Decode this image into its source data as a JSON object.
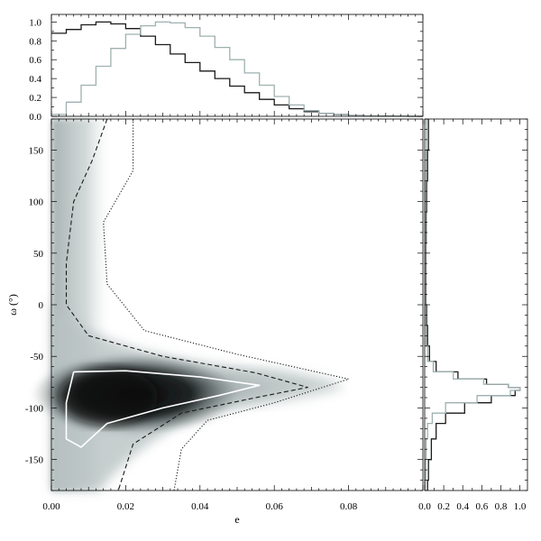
{
  "chart_data": [
    {
      "panel": "top",
      "type": "line",
      "xlabel": "",
      "ylabel": "",
      "xlim": [
        0,
        0.1
      ],
      "ylim": [
        0,
        1.08
      ],
      "y_ticks": [
        "0.0",
        "0.2",
        "0.4",
        "0.6",
        "0.8",
        "1.0"
      ],
      "series": [
        {
          "color": "#1a1a1a",
          "x": [
            0.0,
            0.004,
            0.008,
            0.012,
            0.016,
            0.02,
            0.024,
            0.028,
            0.032,
            0.036,
            0.04,
            0.044,
            0.048,
            0.052,
            0.056,
            0.06,
            0.064,
            0.068,
            0.072,
            0.076,
            0.08,
            0.084,
            0.088,
            0.092,
            0.096,
            0.1
          ],
          "y": [
            0.88,
            0.92,
            0.97,
            1.0,
            0.98,
            0.93,
            0.85,
            0.76,
            0.66,
            0.57,
            0.48,
            0.4,
            0.32,
            0.25,
            0.18,
            0.12,
            0.08,
            0.05,
            0.03,
            0.018,
            0.01,
            0.005,
            0.003,
            0.001,
            0.0,
            0.0
          ]
        },
        {
          "color": "#9fb0b0",
          "x": [
            0.0,
            0.004,
            0.008,
            0.012,
            0.016,
            0.02,
            0.024,
            0.028,
            0.032,
            0.036,
            0.04,
            0.044,
            0.048,
            0.052,
            0.056,
            0.06,
            0.064,
            0.068,
            0.072,
            0.076,
            0.08,
            0.084,
            0.088,
            0.092,
            0.096,
            0.1
          ],
          "y": [
            0.02,
            0.15,
            0.33,
            0.53,
            0.72,
            0.87,
            0.96,
            1.0,
            0.99,
            0.94,
            0.85,
            0.73,
            0.6,
            0.46,
            0.33,
            0.21,
            0.12,
            0.06,
            0.03,
            0.015,
            0.008,
            0.004,
            0.002,
            0.001,
            0.0,
            0.0
          ]
        }
      ]
    },
    {
      "panel": "main",
      "type": "heatmap",
      "xlabel": "e",
      "ylabel": "ω  (°)",
      "xlim": [
        0,
        0.1
      ],
      "ylim": [
        -180,
        180
      ],
      "x_ticks": [
        "0.00",
        "0.02",
        "0.04",
        "0.06",
        "0.08"
      ],
      "y_ticks": [
        "150",
        "100",
        "50",
        "0",
        "-50",
        "-100",
        "-150"
      ],
      "peak": {
        "e": 0.02,
        "omega": -90
      },
      "contours": [
        {
          "style": "solid",
          "color": "#ffffff",
          "points": [
            [
              0.006,
              -65
            ],
            [
              0.02,
              -64
            ],
            [
              0.04,
              -70
            ],
            [
              0.056,
              -78
            ],
            [
              0.045,
              -88
            ],
            [
              0.03,
              -100
            ],
            [
              0.015,
              -115
            ],
            [
              0.008,
              -138
            ],
            [
              0.004,
              -130
            ],
            [
              0.004,
              -95
            ],
            [
              0.006,
              -65
            ]
          ]
        },
        {
          "style": "dashed",
          "color": "#1a1a1a",
          "points": [
            [
              0.015,
              180
            ],
            [
              0.011,
              140
            ],
            [
              0.006,
              100
            ],
            [
              0.004,
              40
            ],
            [
              0.004,
              0
            ],
            [
              0.01,
              -30
            ],
            [
              0.03,
              -50
            ],
            [
              0.055,
              -66
            ],
            [
              0.069,
              -80
            ],
            [
              0.055,
              -90
            ],
            [
              0.035,
              -105
            ],
            [
              0.022,
              -135
            ],
            [
              0.018,
              -180
            ]
          ]
        },
        {
          "style": "dotted",
          "color": "#1a1a1a",
          "points": [
            [
              0.022,
              180
            ],
            [
              0.022,
              130
            ],
            [
              0.014,
              80
            ],
            [
              0.015,
              20
            ],
            [
              0.025,
              -25
            ],
            [
              0.05,
              -48
            ],
            [
              0.08,
              -72
            ],
            [
              0.06,
              -95
            ],
            [
              0.042,
              -112
            ],
            [
              0.035,
              -140
            ],
            [
              0.033,
              -180
            ]
          ]
        }
      ]
    },
    {
      "panel": "right",
      "type": "line",
      "xlabel": "",
      "ylabel": "",
      "xlim": [
        0,
        1.08
      ],
      "ylim": [
        -180,
        180
      ],
      "x_ticks": [
        "0.0",
        "0.2",
        "0.4",
        "0.6",
        "0.8",
        "1.0"
      ],
      "series": [
        {
          "color": "#1a1a1a",
          "y": [
            180,
            150,
            120,
            90,
            60,
            30,
            0,
            -20,
            -40,
            -55,
            -65,
            -72,
            -77,
            -80,
            -83,
            -88,
            -95,
            -105,
            -115,
            -130,
            -150,
            -170,
            -180
          ],
          "x": [
            0.04,
            0.03,
            0.02,
            0.015,
            0.01,
            0.01,
            0.02,
            0.03,
            0.05,
            0.12,
            0.35,
            0.65,
            0.88,
            1.0,
            0.95,
            0.7,
            0.42,
            0.22,
            0.12,
            0.07,
            0.04,
            0.03,
            0.03
          ]
        },
        {
          "color": "#9fb0b0",
          "y": [
            180,
            150,
            120,
            90,
            60,
            30,
            0,
            -20,
            -40,
            -55,
            -65,
            -72,
            -77,
            -80,
            -83,
            -88,
            -95,
            -105,
            -115,
            -130,
            -150,
            -170,
            -180
          ],
          "x": [
            0.02,
            0.015,
            0.01,
            0.008,
            0.005,
            0.005,
            0.01,
            0.015,
            0.03,
            0.09,
            0.3,
            0.62,
            0.88,
            1.0,
            0.9,
            0.55,
            0.22,
            0.08,
            0.03,
            0.015,
            0.01,
            0.005,
            0.005
          ]
        }
      ]
    }
  ]
}
